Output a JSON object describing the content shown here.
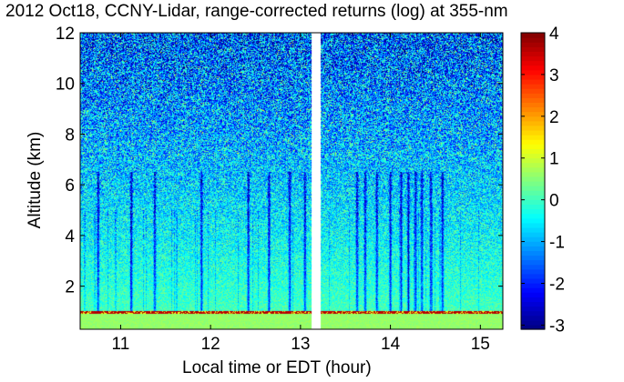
{
  "chart_data": {
    "type": "heatmap",
    "title": "2012 Oct18, CCNY-Lidar, range-corrected returns (log) at 355-nm",
    "xlabel": "Local time or EDT (hour)",
    "ylabel": "Altitude (km)",
    "xlim": [
      10.55,
      15.25
    ],
    "ylim": [
      0.3,
      12
    ],
    "x_ticks": [
      11,
      12,
      13,
      14,
      15
    ],
    "y_ticks": [
      2,
      4,
      6,
      8,
      10,
      12
    ],
    "data_gap": [
      13.12,
      13.22
    ],
    "colorbar": {
      "label": "",
      "range": [
        -3.1,
        4
      ],
      "ticks": [
        -3,
        -2,
        -1,
        0,
        1,
        2,
        3,
        4
      ],
      "colormap": "jet"
    },
    "features": {
      "boundary_layer_top_km": 0.95,
      "near_surface_value": 0.6,
      "aerosol_layer_value": 3.6,
      "cloud_shadow_times": [
        10.75,
        11.12,
        11.38,
        11.9,
        12.42,
        12.65,
        12.88,
        13.05,
        13.63,
        13.72,
        13.85,
        14.0,
        14.12,
        14.2,
        14.28,
        14.35,
        14.45,
        14.58
      ]
    }
  }
}
